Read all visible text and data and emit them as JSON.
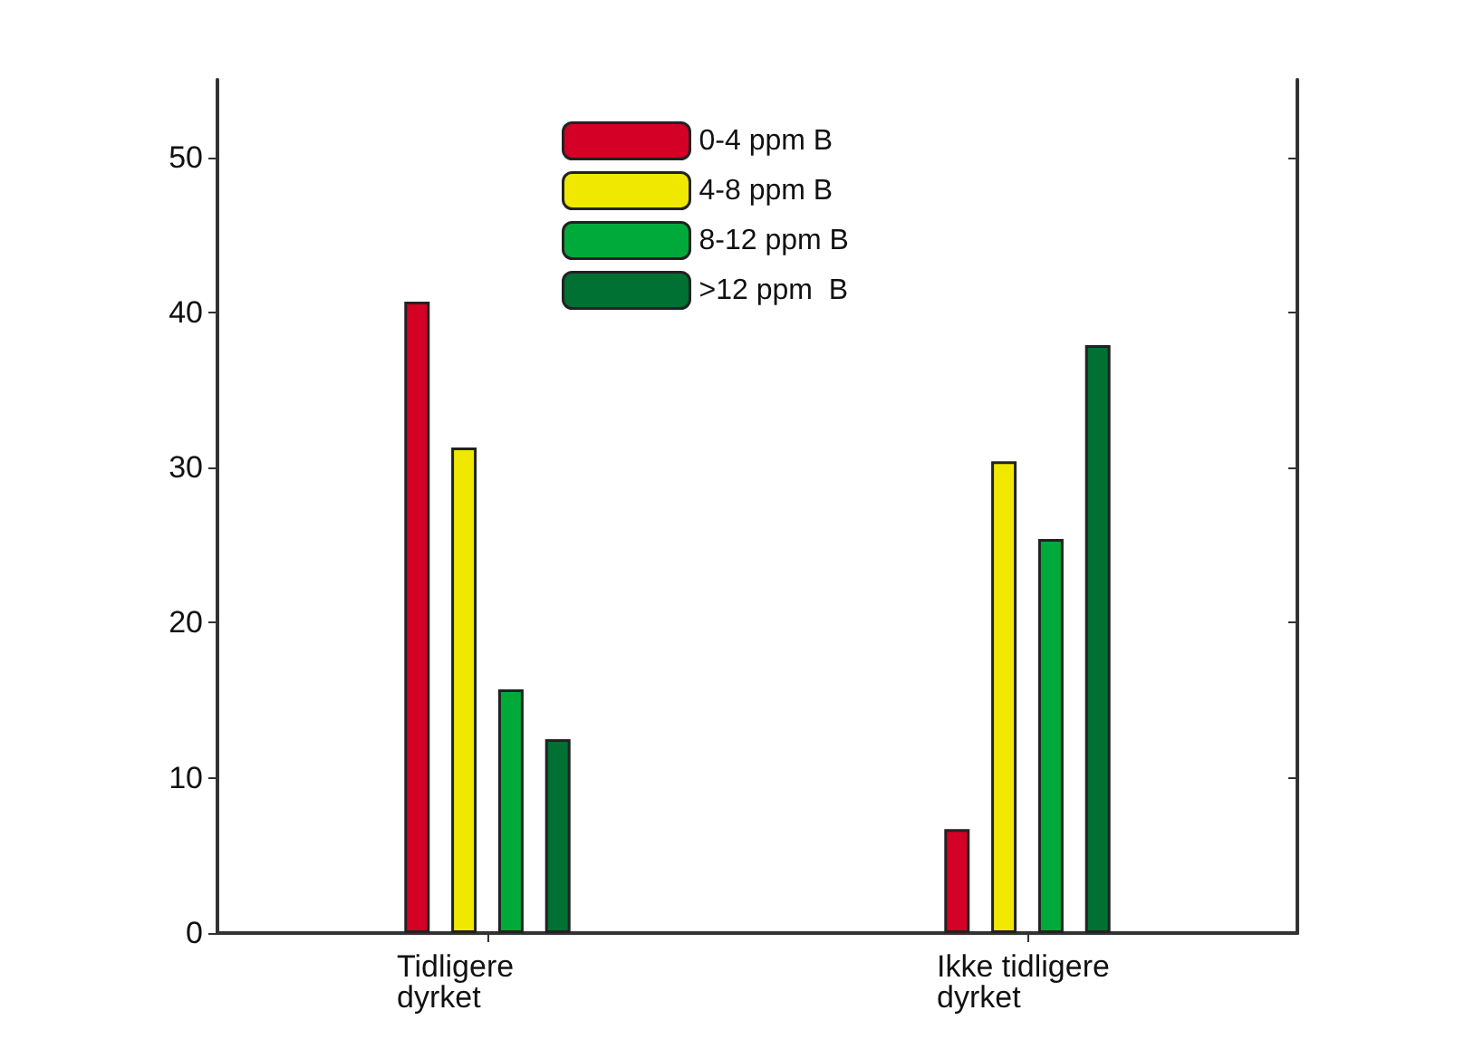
{
  "chart_data": {
    "type": "bar",
    "categories": [
      "Tidligere\ndyrket",
      "Ikke tidligere\ndyrket"
    ],
    "series": [
      {
        "name": "0-4 ppm B",
        "color": "#d40025",
        "values": [
          40.7,
          6.7
        ]
      },
      {
        "name": "4-8 ppm B",
        "color": "#f0e800",
        "values": [
          31.3,
          30.4
        ]
      },
      {
        "name": "8-12 ppm B",
        "color": "#00aa3a",
        "values": [
          15.7,
          25.4
        ]
      },
      {
        "name": ">12 ppm  B",
        "color": "#007033",
        "values": [
          12.5,
          37.9
        ]
      }
    ],
    "ylim": [
      0,
      55
    ],
    "yticks": [
      0,
      10,
      20,
      30,
      40,
      50
    ],
    "grid": false,
    "legend": "top"
  }
}
